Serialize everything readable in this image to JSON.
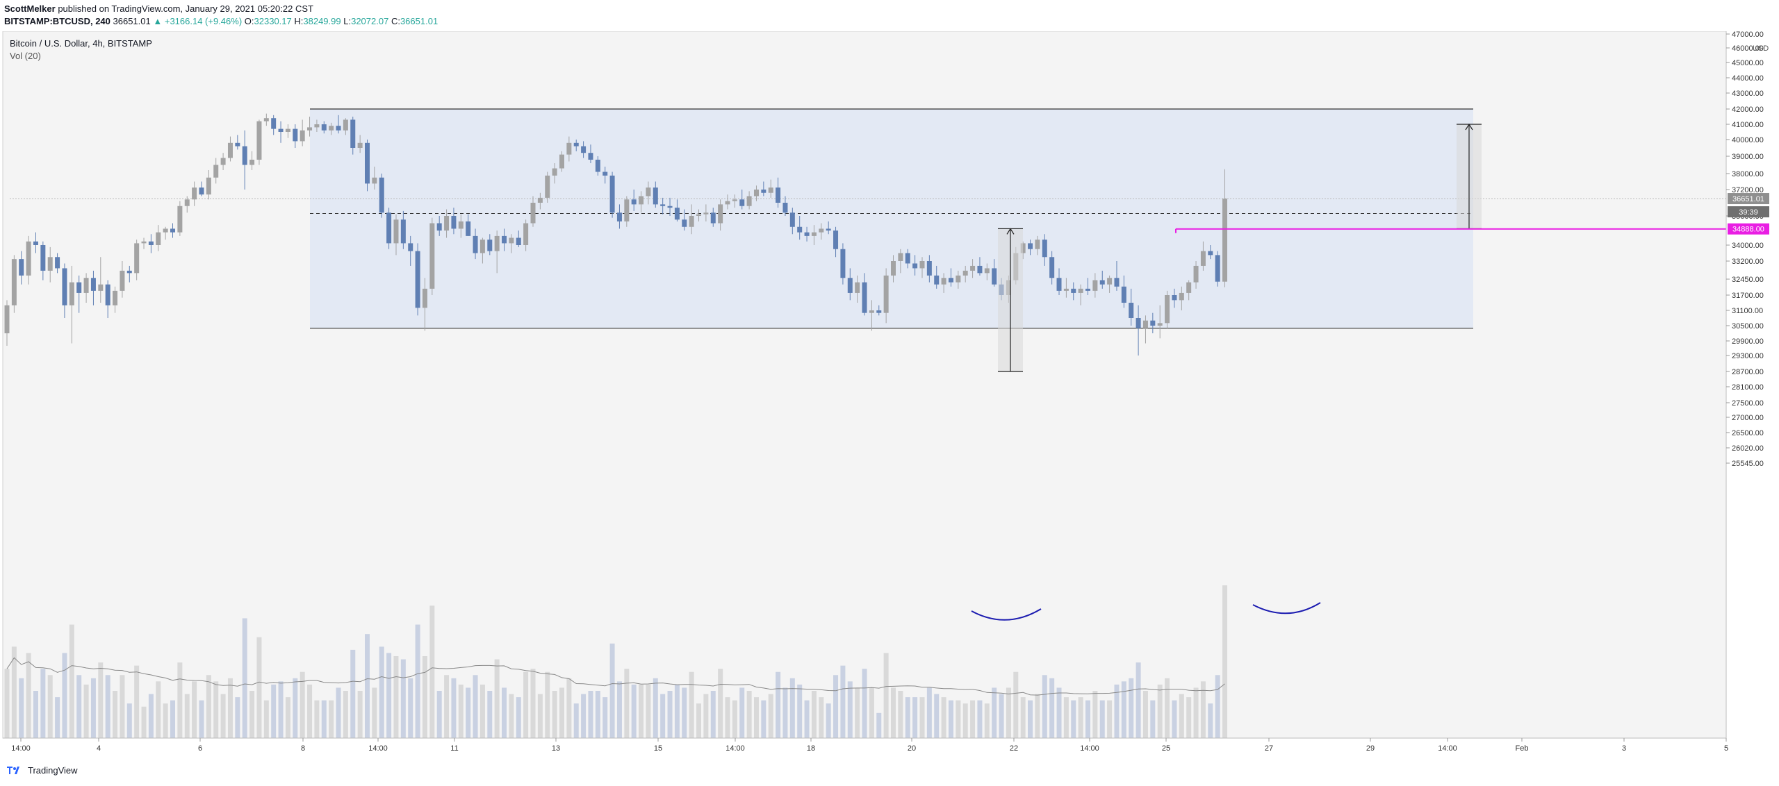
{
  "header": {
    "author": "ScottMelker",
    "published_text": "published on TradingView.com, January 29, 2021 05:20:22 CST",
    "symbol": "BITSTAMP:BTCUSD, 240",
    "last": "36651.01",
    "change": "▲ +3166.14 (+9.46%)",
    "o_label": "O:",
    "o_value": "32330.17",
    "h_label": "H:",
    "h_value": "38249.99",
    "l_label": "L:",
    "l_value": "32072.07",
    "c_label": "C:",
    "c_value": "36651.01"
  },
  "legend": {
    "title": "Bitcoin / U.S. Dollar, 4h, BITSTAMP",
    "indicator": "Vol (20)"
  },
  "footer": {
    "brand": "TradingView",
    "logo_icon": "tradingview-logo-icon"
  },
  "colors": {
    "bear": "#5f7fb3",
    "bull": "#a3a3a3",
    "range": "#dde6f4",
    "pink": "#e91ee3",
    "arc": "#1b1bb0",
    "background": "#f4f4f4"
  },
  "chart_data": {
    "type": "candlestick",
    "title": "Bitcoin / U.S. Dollar, 4h, BITSTAMP",
    "currency": "USD",
    "y_tick_labels": [
      "47000.00",
      "46000.00",
      "45000.00",
      "44000.00",
      "43000.00",
      "42000.00",
      "41000.00",
      "40000.00",
      "39000.00",
      "38000.00",
      "37200.00",
      "35600.00",
      "34000.00",
      "33200.00",
      "32450.00",
      "31700.00",
      "31100.00",
      "30500.00",
      "29900.00",
      "29300.00",
      "28700.00",
      "28100.00",
      "27500.00",
      "27000.00",
      "26500.00",
      "26020.00",
      "25545.00"
    ],
    "x_tick_labels": [
      "14:00",
      "4",
      "6",
      "8",
      "14:00",
      "11",
      "13",
      "15",
      "14:00",
      "18",
      "20",
      "22",
      "14:00",
      "25",
      "27",
      "29",
      "14:00",
      "Feb",
      "3",
      "5"
    ],
    "price_tags": [
      {
        "value": "36651.01",
        "style": "current"
      },
      {
        "value": "39:39",
        "style": "countdown"
      },
      {
        "value": "34888.00",
        "style": "level"
      }
    ],
    "last_price": 36651.01,
    "dashed_level": 35750,
    "pink_level": 34888.0,
    "range_box": {
      "top": 42000,
      "bottom": 30400
    },
    "projection_low": {
      "from": 34900,
      "to": 28700
    },
    "projection_high": {
      "from": 34900,
      "to": 41000
    },
    "volume_ma_period": 20,
    "candles": [
      {
        "o": 30200,
        "h": 31500,
        "l": 29700,
        "c": 31300
      },
      {
        "o": 31300,
        "h": 33500,
        "l": 31000,
        "c": 33300
      },
      {
        "o": 33300,
        "h": 33700,
        "l": 32200,
        "c": 32600
      },
      {
        "o": 32600,
        "h": 34500,
        "l": 32200,
        "c": 34200
      },
      {
        "o": 34200,
        "h": 34700,
        "l": 33600,
        "c": 34000
      },
      {
        "o": 34000,
        "h": 34200,
        "l": 32400,
        "c": 32800
      },
      {
        "o": 32800,
        "h": 33900,
        "l": 32300,
        "c": 33400
      },
      {
        "o": 33400,
        "h": 33600,
        "l": 32700,
        "c": 32900
      },
      {
        "o": 32900,
        "h": 33100,
        "l": 30800,
        "c": 31300
      },
      {
        "o": 31300,
        "h": 33000,
        "l": 29800,
        "c": 32300
      },
      {
        "o": 32300,
        "h": 32600,
        "l": 31000,
        "c": 31800
      },
      {
        "o": 31800,
        "h": 32700,
        "l": 31400,
        "c": 32500
      },
      {
        "o": 32500,
        "h": 32800,
        "l": 31300,
        "c": 31900
      },
      {
        "o": 31900,
        "h": 33400,
        "l": 31400,
        "c": 32200
      },
      {
        "o": 32200,
        "h": 32400,
        "l": 30800,
        "c": 31300
      },
      {
        "o": 31300,
        "h": 32100,
        "l": 31000,
        "c": 31900
      },
      {
        "o": 31900,
        "h": 33200,
        "l": 31600,
        "c": 32800
      },
      {
        "o": 32800,
        "h": 33000,
        "l": 32300,
        "c": 32700
      },
      {
        "o": 32700,
        "h": 34300,
        "l": 32400,
        "c": 34100
      },
      {
        "o": 34100,
        "h": 34400,
        "l": 33800,
        "c": 34200
      },
      {
        "o": 34200,
        "h": 34600,
        "l": 33600,
        "c": 34000
      },
      {
        "o": 34000,
        "h": 35100,
        "l": 33700,
        "c": 34700
      },
      {
        "o": 34700,
        "h": 35000,
        "l": 34300,
        "c": 34900
      },
      {
        "o": 34900,
        "h": 35200,
        "l": 34400,
        "c": 34700
      },
      {
        "o": 34700,
        "h": 36500,
        "l": 34500,
        "c": 36200
      },
      {
        "o": 36200,
        "h": 36800,
        "l": 35800,
        "c": 36600
      },
      {
        "o": 36600,
        "h": 37600,
        "l": 36200,
        "c": 37300
      },
      {
        "o": 37300,
        "h": 37600,
        "l": 36800,
        "c": 36900
      },
      {
        "o": 36900,
        "h": 38200,
        "l": 36600,
        "c": 37800
      },
      {
        "o": 37800,
        "h": 38900,
        "l": 37500,
        "c": 38500
      },
      {
        "o": 38500,
        "h": 39200,
        "l": 38200,
        "c": 38900
      },
      {
        "o": 38900,
        "h": 40200,
        "l": 38700,
        "c": 39800
      },
      {
        "o": 39800,
        "h": 40300,
        "l": 39400,
        "c": 39600
      },
      {
        "o": 39600,
        "h": 40600,
        "l": 37200,
        "c": 38500
      },
      {
        "o": 38500,
        "h": 39300,
        "l": 38200,
        "c": 38800
      },
      {
        "o": 38800,
        "h": 41300,
        "l": 38500,
        "c": 41200
      },
      {
        "o": 41200,
        "h": 41700,
        "l": 40900,
        "c": 41400
      },
      {
        "o": 41400,
        "h": 41600,
        "l": 40300,
        "c": 40700
      },
      {
        "o": 40700,
        "h": 41200,
        "l": 39800,
        "c": 40500
      },
      {
        "o": 40500,
        "h": 41000,
        "l": 40100,
        "c": 40700
      },
      {
        "o": 40700,
        "h": 41000,
        "l": 39500,
        "c": 39900
      },
      {
        "o": 39900,
        "h": 41300,
        "l": 39600,
        "c": 40600
      },
      {
        "o": 40600,
        "h": 41500,
        "l": 40200,
        "c": 40800
      },
      {
        "o": 40800,
        "h": 41300,
        "l": 40500,
        "c": 41000
      },
      {
        "o": 41000,
        "h": 41200,
        "l": 40400,
        "c": 40600
      },
      {
        "o": 40600,
        "h": 41100,
        "l": 40300,
        "c": 40900
      },
      {
        "o": 40900,
        "h": 41600,
        "l": 40400,
        "c": 40600
      },
      {
        "o": 40600,
        "h": 41400,
        "l": 40300,
        "c": 41300
      },
      {
        "o": 41300,
        "h": 41500,
        "l": 39100,
        "c": 39500
      },
      {
        "o": 39500,
        "h": 40300,
        "l": 39200,
        "c": 39800
      },
      {
        "o": 39800,
        "h": 40000,
        "l": 37100,
        "c": 37500
      },
      {
        "o": 37500,
        "h": 38400,
        "l": 37200,
        "c": 37800
      },
      {
        "o": 37800,
        "h": 38000,
        "l": 35500,
        "c": 35800
      },
      {
        "o": 35800,
        "h": 36100,
        "l": 33800,
        "c": 34100
      },
      {
        "o": 34100,
        "h": 35700,
        "l": 33500,
        "c": 35400
      },
      {
        "o": 35400,
        "h": 35900,
        "l": 33800,
        "c": 34100
      },
      {
        "o": 34100,
        "h": 34500,
        "l": 33000,
        "c": 33700
      },
      {
        "o": 33700,
        "h": 34100,
        "l": 30900,
        "c": 31200
      },
      {
        "o": 31200,
        "h": 32500,
        "l": 30300,
        "c": 32000
      },
      {
        "o": 32000,
        "h": 35500,
        "l": 31700,
        "c": 35200
      },
      {
        "o": 35200,
        "h": 35600,
        "l": 34500,
        "c": 34800
      },
      {
        "o": 34800,
        "h": 36000,
        "l": 34400,
        "c": 35600
      },
      {
        "o": 35600,
        "h": 36100,
        "l": 34600,
        "c": 34900
      },
      {
        "o": 34900,
        "h": 35700,
        "l": 34400,
        "c": 35300
      },
      {
        "o": 35300,
        "h": 35700,
        "l": 34500,
        "c": 34500
      },
      {
        "o": 34500,
        "h": 34900,
        "l": 33300,
        "c": 33600
      },
      {
        "o": 33600,
        "h": 34400,
        "l": 33100,
        "c": 34300
      },
      {
        "o": 34300,
        "h": 34600,
        "l": 33500,
        "c": 33700
      },
      {
        "o": 33700,
        "h": 34800,
        "l": 32700,
        "c": 34500
      },
      {
        "o": 34500,
        "h": 34900,
        "l": 33700,
        "c": 34100
      },
      {
        "o": 34100,
        "h": 34600,
        "l": 33600,
        "c": 34400
      },
      {
        "o": 34400,
        "h": 34800,
        "l": 33900,
        "c": 34000
      },
      {
        "o": 34000,
        "h": 35400,
        "l": 33700,
        "c": 35200
      },
      {
        "o": 35200,
        "h": 36800,
        "l": 35000,
        "c": 36400
      },
      {
        "o": 36400,
        "h": 37000,
        "l": 36000,
        "c": 36700
      },
      {
        "o": 36700,
        "h": 38100,
        "l": 36400,
        "c": 37900
      },
      {
        "o": 37900,
        "h": 38600,
        "l": 37500,
        "c": 38300
      },
      {
        "o": 38300,
        "h": 39300,
        "l": 38100,
        "c": 39100
      },
      {
        "o": 39100,
        "h": 40200,
        "l": 38700,
        "c": 39800
      },
      {
        "o": 39800,
        "h": 40000,
        "l": 39300,
        "c": 39600
      },
      {
        "o": 39600,
        "h": 39900,
        "l": 38900,
        "c": 39200
      },
      {
        "o": 39200,
        "h": 39700,
        "l": 38600,
        "c": 38800
      },
      {
        "o": 38800,
        "h": 39000,
        "l": 37900,
        "c": 38100
      },
      {
        "o": 38100,
        "h": 38400,
        "l": 37500,
        "c": 37900
      },
      {
        "o": 37900,
        "h": 38100,
        "l": 35500,
        "c": 35800
      },
      {
        "o": 35800,
        "h": 36300,
        "l": 34900,
        "c": 35300
      },
      {
        "o": 35300,
        "h": 36800,
        "l": 35000,
        "c": 36600
      },
      {
        "o": 36600,
        "h": 37200,
        "l": 35900,
        "c": 36300
      },
      {
        "o": 36300,
        "h": 37100,
        "l": 35800,
        "c": 36800
      },
      {
        "o": 36800,
        "h": 37600,
        "l": 36300,
        "c": 37300
      },
      {
        "o": 37300,
        "h": 37600,
        "l": 36100,
        "c": 36300
      },
      {
        "o": 36300,
        "h": 36700,
        "l": 35700,
        "c": 36200
      },
      {
        "o": 36200,
        "h": 36700,
        "l": 35600,
        "c": 36100
      },
      {
        "o": 36100,
        "h": 36600,
        "l": 35300,
        "c": 35400
      },
      {
        "o": 35400,
        "h": 36000,
        "l": 34800,
        "c": 35000
      },
      {
        "o": 35000,
        "h": 36300,
        "l": 34600,
        "c": 35600
      },
      {
        "o": 35600,
        "h": 36000,
        "l": 35300,
        "c": 35700
      },
      {
        "o": 35700,
        "h": 36300,
        "l": 35300,
        "c": 35800
      },
      {
        "o": 35800,
        "h": 36100,
        "l": 35000,
        "c": 35200
      },
      {
        "o": 35200,
        "h": 36600,
        "l": 34800,
        "c": 36300
      },
      {
        "o": 36300,
        "h": 36900,
        "l": 36000,
        "c": 36500
      },
      {
        "o": 36500,
        "h": 36900,
        "l": 36100,
        "c": 36600
      },
      {
        "o": 36600,
        "h": 37200,
        "l": 36000,
        "c": 36200
      },
      {
        "o": 36200,
        "h": 37100,
        "l": 36000,
        "c": 36800
      },
      {
        "o": 36800,
        "h": 37400,
        "l": 36500,
        "c": 37200
      },
      {
        "o": 37200,
        "h": 37600,
        "l": 36800,
        "c": 37000
      },
      {
        "o": 37000,
        "h": 37700,
        "l": 36700,
        "c": 37300
      },
      {
        "o": 37300,
        "h": 37800,
        "l": 36100,
        "c": 36400
      },
      {
        "o": 36400,
        "h": 36800,
        "l": 35600,
        "c": 35800
      },
      {
        "o": 35800,
        "h": 36100,
        "l": 34600,
        "c": 35000
      },
      {
        "o": 35000,
        "h": 35600,
        "l": 34300,
        "c": 34700
      },
      {
        "o": 34700,
        "h": 35000,
        "l": 34200,
        "c": 34500
      },
      {
        "o": 34500,
        "h": 35100,
        "l": 34000,
        "c": 34700
      },
      {
        "o": 34700,
        "h": 35200,
        "l": 34300,
        "c": 34900
      },
      {
        "o": 34900,
        "h": 35300,
        "l": 34600,
        "c": 34800
      },
      {
        "o": 34800,
        "h": 35000,
        "l": 33400,
        "c": 33800
      },
      {
        "o": 33800,
        "h": 34100,
        "l": 32200,
        "c": 32500
      },
      {
        "o": 32500,
        "h": 32900,
        "l": 31500,
        "c": 31800
      },
      {
        "o": 31800,
        "h": 32600,
        "l": 31400,
        "c": 32300
      },
      {
        "o": 32300,
        "h": 32700,
        "l": 30900,
        "c": 31000
      },
      {
        "o": 31000,
        "h": 31500,
        "l": 30300,
        "c": 31100
      },
      {
        "o": 31100,
        "h": 31300,
        "l": 30900,
        "c": 31000
      },
      {
        "o": 31000,
        "h": 32900,
        "l": 30600,
        "c": 32600
      },
      {
        "o": 32600,
        "h": 33500,
        "l": 32300,
        "c": 33200
      },
      {
        "o": 33200,
        "h": 33800,
        "l": 32700,
        "c": 33600
      },
      {
        "o": 33600,
        "h": 33800,
        "l": 32900,
        "c": 33100
      },
      {
        "o": 33100,
        "h": 33500,
        "l": 32600,
        "c": 32900
      },
      {
        "o": 32900,
        "h": 33400,
        "l": 32500,
        "c": 33200
      },
      {
        "o": 33200,
        "h": 33500,
        "l": 32300,
        "c": 32600
      },
      {
        "o": 32600,
        "h": 33000,
        "l": 32000,
        "c": 32200
      },
      {
        "o": 32200,
        "h": 32700,
        "l": 31800,
        "c": 32500
      },
      {
        "o": 32500,
        "h": 32900,
        "l": 32100,
        "c": 32300
      },
      {
        "o": 32300,
        "h": 32800,
        "l": 32000,
        "c": 32600
      },
      {
        "o": 32600,
        "h": 33000,
        "l": 32300,
        "c": 32800
      },
      {
        "o": 32800,
        "h": 33300,
        "l": 32500,
        "c": 33000
      },
      {
        "o": 33000,
        "h": 33400,
        "l": 32600,
        "c": 32700
      },
      {
        "o": 32700,
        "h": 33100,
        "l": 32400,
        "c": 32900
      },
      {
        "o": 32900,
        "h": 33300,
        "l": 32100,
        "c": 32200
      },
      {
        "o": 32200,
        "h": 32500,
        "l": 31500,
        "c": 31700
      },
      {
        "o": 31700,
        "h": 32600,
        "l": 31400,
        "c": 32400
      },
      {
        "o": 32400,
        "h": 33900,
        "l": 32200,
        "c": 33600
      },
      {
        "o": 33600,
        "h": 34200,
        "l": 33300,
        "c": 34100
      },
      {
        "o": 34100,
        "h": 34300,
        "l": 33500,
        "c": 33800
      },
      {
        "o": 33800,
        "h": 34500,
        "l": 33500,
        "c": 34300
      },
      {
        "o": 34300,
        "h": 34600,
        "l": 33000,
        "c": 33400
      },
      {
        "o": 33400,
        "h": 33700,
        "l": 32200,
        "c": 32500
      },
      {
        "o": 32500,
        "h": 32900,
        "l": 31700,
        "c": 31900
      },
      {
        "o": 31900,
        "h": 32500,
        "l": 31600,
        "c": 32000
      },
      {
        "o": 32000,
        "h": 32300,
        "l": 31500,
        "c": 31800
      },
      {
        "o": 31800,
        "h": 32200,
        "l": 31300,
        "c": 32000
      },
      {
        "o": 32000,
        "h": 32500,
        "l": 31700,
        "c": 31900
      },
      {
        "o": 31900,
        "h": 32700,
        "l": 31600,
        "c": 32400
      },
      {
        "o": 32400,
        "h": 32800,
        "l": 32000,
        "c": 32200
      },
      {
        "o": 32200,
        "h": 32600,
        "l": 31800,
        "c": 32500
      },
      {
        "o": 32500,
        "h": 33200,
        "l": 31900,
        "c": 32100
      },
      {
        "o": 32100,
        "h": 32600,
        "l": 31200,
        "c": 31400
      },
      {
        "o": 31400,
        "h": 32000,
        "l": 30500,
        "c": 30800
      },
      {
        "o": 30800,
        "h": 31300,
        "l": 29300,
        "c": 30400
      },
      {
        "o": 30400,
        "h": 30900,
        "l": 29800,
        "c": 30700
      },
      {
        "o": 30700,
        "h": 31000,
        "l": 30200,
        "c": 30500
      },
      {
        "o": 30500,
        "h": 31300,
        "l": 30000,
        "c": 30600
      },
      {
        "o": 30600,
        "h": 31900,
        "l": 30400,
        "c": 31700
      },
      {
        "o": 31700,
        "h": 32000,
        "l": 31200,
        "c": 31500
      },
      {
        "o": 31500,
        "h": 32100,
        "l": 31100,
        "c": 31800
      },
      {
        "o": 31800,
        "h": 32400,
        "l": 31500,
        "c": 32300
      },
      {
        "o": 32300,
        "h": 33200,
        "l": 32000,
        "c": 33000
      },
      {
        "o": 33000,
        "h": 34200,
        "l": 32800,
        "c": 33700
      },
      {
        "o": 33700,
        "h": 34000,
        "l": 33300,
        "c": 33500
      },
      {
        "o": 33500,
        "h": 33700,
        "l": 32100,
        "c": 32330
      },
      {
        "o": 32330,
        "h": 38250,
        "l": 32072,
        "c": 36651
      }
    ]
  }
}
